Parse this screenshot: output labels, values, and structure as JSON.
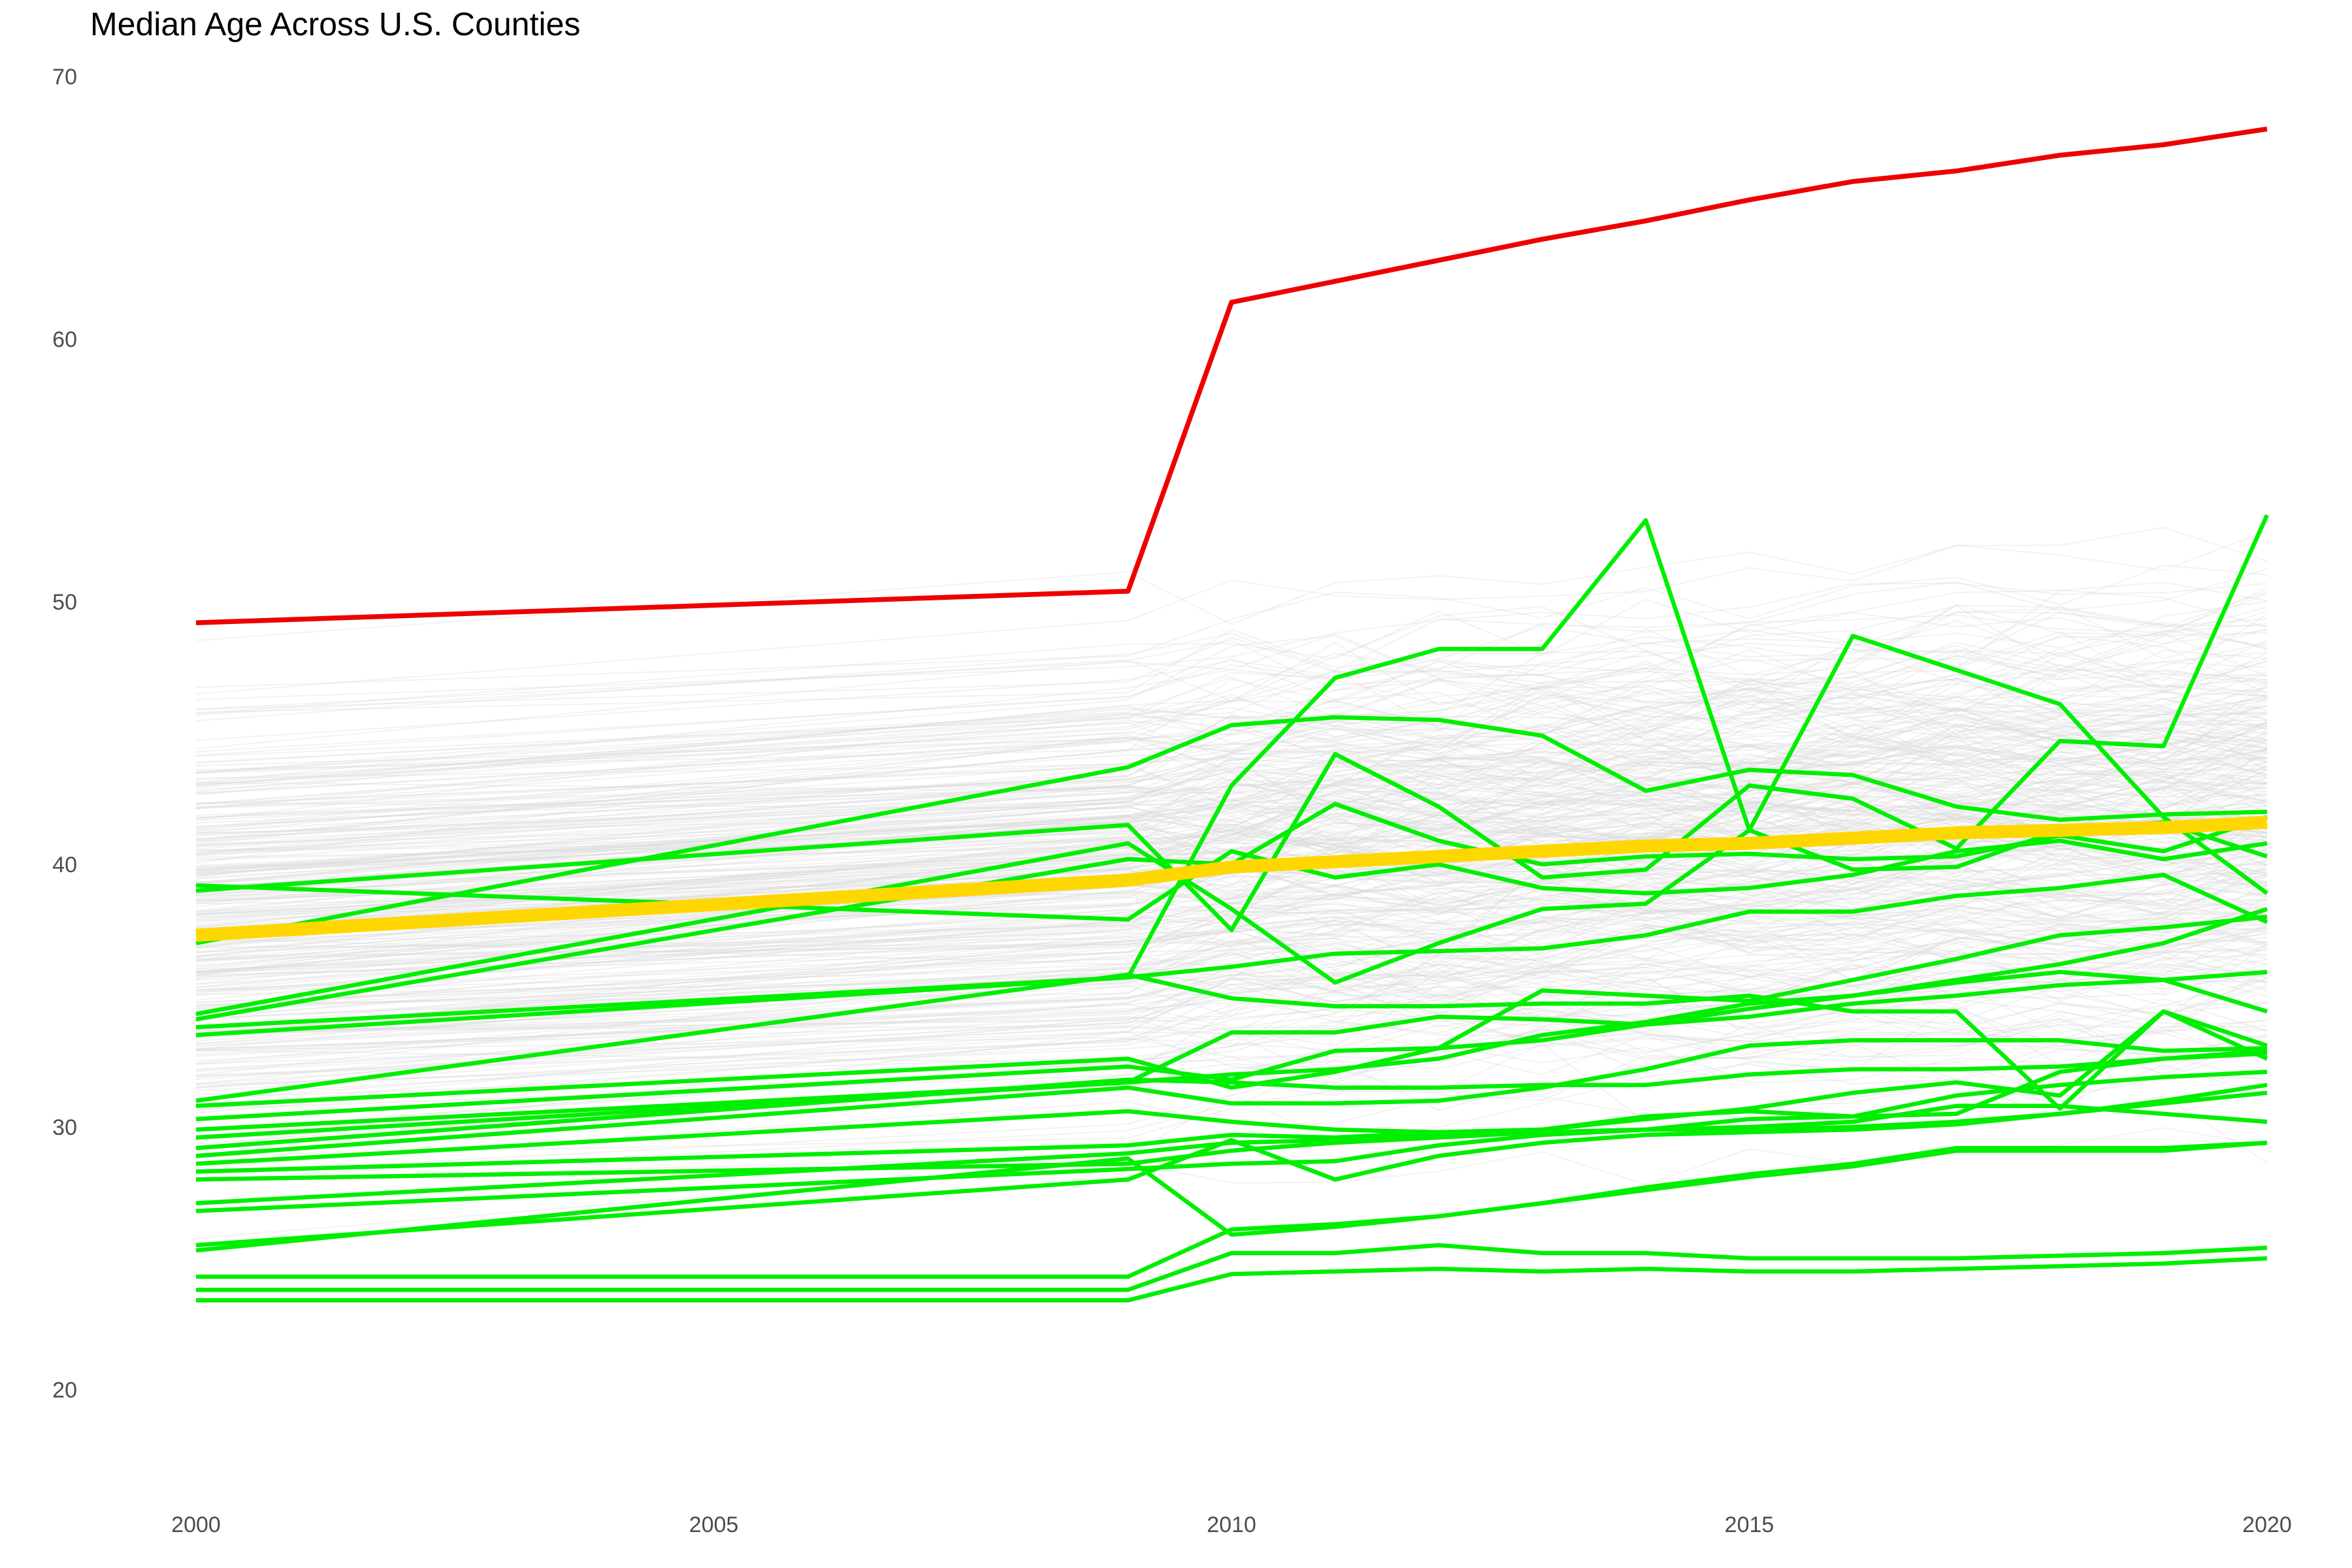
{
  "chart_data": {
    "type": "line",
    "title": "Median Age Across U.S. Counties",
    "xlabel": "",
    "ylabel": "",
    "xlim": [
      2000,
      2020
    ],
    "ylim": [
      17,
      71
    ],
    "x_ticks": [
      2000,
      2005,
      2010,
      2015,
      2020
    ],
    "y_ticks": [
      20,
      30,
      40,
      50,
      60,
      70
    ],
    "grid": false,
    "legend": "none",
    "colors": {
      "background_counties": "#d9d9d9",
      "highlight_oldest": "#ee0000",
      "highlight_youngest": "#00ee00",
      "national_median": "#ffd700",
      "tick_text": "#4d4d4d"
    },
    "x": [
      2000,
      2009,
      2010,
      2011,
      2012,
      2013,
      2014,
      2015,
      2016,
      2017,
      2018,
      2019,
      2020
    ],
    "series": [
      {
        "role": "oldest",
        "values": [
          49.2,
          50.4,
          61.4,
          62.2,
          63.0,
          63.8,
          64.5,
          65.3,
          66.0,
          66.4,
          67.0,
          67.4,
          68.0
        ]
      },
      {
        "role": "median",
        "values": [
          37.3,
          39.4,
          39.9,
          40.1,
          40.3,
          40.5,
          40.7,
          40.8,
          41.0,
          41.2,
          41.3,
          41.4,
          41.6
        ]
      },
      {
        "role": "young",
        "values": [
          39.2,
          37.9,
          40.5,
          39.5,
          40.0,
          39.1,
          38.9,
          39.1,
          39.6,
          40.5,
          40.9,
          40.2,
          40.8
        ]
      },
      {
        "role": "young",
        "values": [
          39.0,
          41.5,
          37.5,
          44.2,
          42.2,
          39.5,
          39.8,
          43.0,
          42.5,
          40.6,
          44.7,
          44.5,
          53.3
        ]
      },
      {
        "role": "young",
        "values": [
          37.0,
          43.7,
          45.3,
          45.6,
          45.5,
          44.9,
          42.8,
          43.6,
          43.4,
          42.2,
          41.7,
          41.9,
          42.0
        ]
      },
      {
        "role": "young",
        "values": [
          34.3,
          40.8,
          38.3,
          35.5,
          37.0,
          38.3,
          38.5,
          41.3,
          48.7,
          47.4,
          46.1,
          41.8,
          38.9
        ]
      },
      {
        "role": "young",
        "values": [
          34.1,
          40.2,
          40.0,
          42.3,
          40.9,
          40.0,
          40.3,
          40.4,
          40.2,
          40.3,
          41.1,
          40.5,
          41.8
        ]
      },
      {
        "role": "young",
        "values": [
          33.8,
          35.7,
          43.0,
          47.1,
          48.2,
          48.2,
          53.1,
          41.3,
          39.8,
          39.9,
          41.3,
          41.6,
          40.3
        ]
      },
      {
        "role": "young",
        "values": [
          33.5,
          35.7,
          36.1,
          36.6,
          36.7,
          36.8,
          37.3,
          38.2,
          38.2,
          38.8,
          39.1,
          39.6,
          37.8
        ]
      },
      {
        "role": "young",
        "values": [
          31.0,
          35.8,
          34.9,
          34.6,
          34.6,
          34.7,
          34.7,
          35.0,
          34.4,
          34.4,
          30.7,
          34.4,
          33.1
        ]
      },
      {
        "role": "young",
        "values": [
          30.8,
          32.6,
          31.5,
          32.1,
          33.0,
          35.2,
          35.0,
          34.8,
          35.6,
          36.4,
          37.3,
          37.6,
          38.0
        ]
      },
      {
        "role": "young",
        "values": [
          30.3,
          32.3,
          31.8,
          32.9,
          33.0,
          33.3,
          33.9,
          34.5,
          35.0,
          35.6,
          36.2,
          37.0,
          38.3
        ]
      },
      {
        "role": "young",
        "values": [
          29.9,
          31.7,
          32.0,
          32.2,
          32.6,
          33.5,
          34.0,
          34.7,
          35.0,
          35.5,
          35.9,
          35.6,
          34.4
        ]
      },
      {
        "role": "young",
        "values": [
          29.6,
          31.7,
          33.6,
          33.6,
          34.2,
          34.1,
          33.9,
          34.2,
          34.7,
          35.0,
          35.4,
          35.6,
          35.9
        ]
      },
      {
        "role": "young",
        "values": [
          29.2,
          31.8,
          31.7,
          31.5,
          31.5,
          31.6,
          31.6,
          32.0,
          32.2,
          32.2,
          32.3,
          32.6,
          32.9
        ]
      },
      {
        "role": "young",
        "values": [
          28.9,
          31.5,
          30.9,
          30.9,
          31.0,
          31.5,
          32.2,
          33.1,
          33.3,
          33.3,
          33.3,
          32.9,
          33.0
        ]
      },
      {
        "role": "young",
        "values": [
          28.6,
          30.6,
          30.2,
          29.9,
          29.8,
          29.9,
          30.4,
          30.6,
          30.4,
          30.5,
          32.1,
          32.6,
          32.8
        ]
      },
      {
        "role": "young",
        "values": [
          28.3,
          29.3,
          29.7,
          29.6,
          29.8,
          29.9,
          30.3,
          30.7,
          31.3,
          31.7,
          31.2,
          34.4,
          32.6
        ]
      },
      {
        "role": "young",
        "values": [
          28.0,
          28.6,
          29.1,
          29.4,
          29.6,
          29.8,
          29.9,
          30.3,
          30.4,
          31.2,
          31.6,
          31.9,
          32.1
        ]
      },
      {
        "role": "young",
        "values": [
          27.1,
          29.0,
          29.4,
          29.5,
          29.7,
          29.8,
          29.9,
          30.0,
          30.2,
          30.8,
          30.8,
          30.5,
          30.2
        ]
      },
      {
        "role": "young",
        "values": [
          26.8,
          28.4,
          28.6,
          28.7,
          29.3,
          29.7,
          29.9,
          29.9,
          30.0,
          30.2,
          30.5,
          30.9,
          31.3
        ]
      },
      {
        "role": "young",
        "values": [
          25.5,
          28.0,
          29.5,
          28.0,
          28.9,
          29.4,
          29.7,
          29.8,
          29.9,
          30.1,
          30.5,
          31.0,
          31.6
        ]
      },
      {
        "role": "young",
        "values": [
          25.3,
          28.8,
          25.9,
          26.2,
          26.6,
          27.1,
          27.7,
          28.2,
          28.6,
          29.2,
          29.2,
          29.2,
          29.4
        ]
      },
      {
        "role": "young",
        "values": [
          24.3,
          24.3,
          26.1,
          26.3,
          26.6,
          27.1,
          27.6,
          28.1,
          28.5,
          29.1,
          29.1,
          29.1,
          29.4
        ]
      },
      {
        "role": "young",
        "values": [
          23.8,
          23.8,
          25.2,
          25.2,
          25.5,
          25.2,
          25.2,
          25.0,
          25.0,
          25.0,
          25.1,
          25.2,
          25.4
        ]
      },
      {
        "role": "young",
        "values": [
          23.4,
          23.4,
          24.4,
          24.5,
          24.6,
          24.5,
          24.6,
          24.5,
          24.5,
          24.6,
          24.7,
          24.8,
          25.0
        ]
      }
    ]
  }
}
